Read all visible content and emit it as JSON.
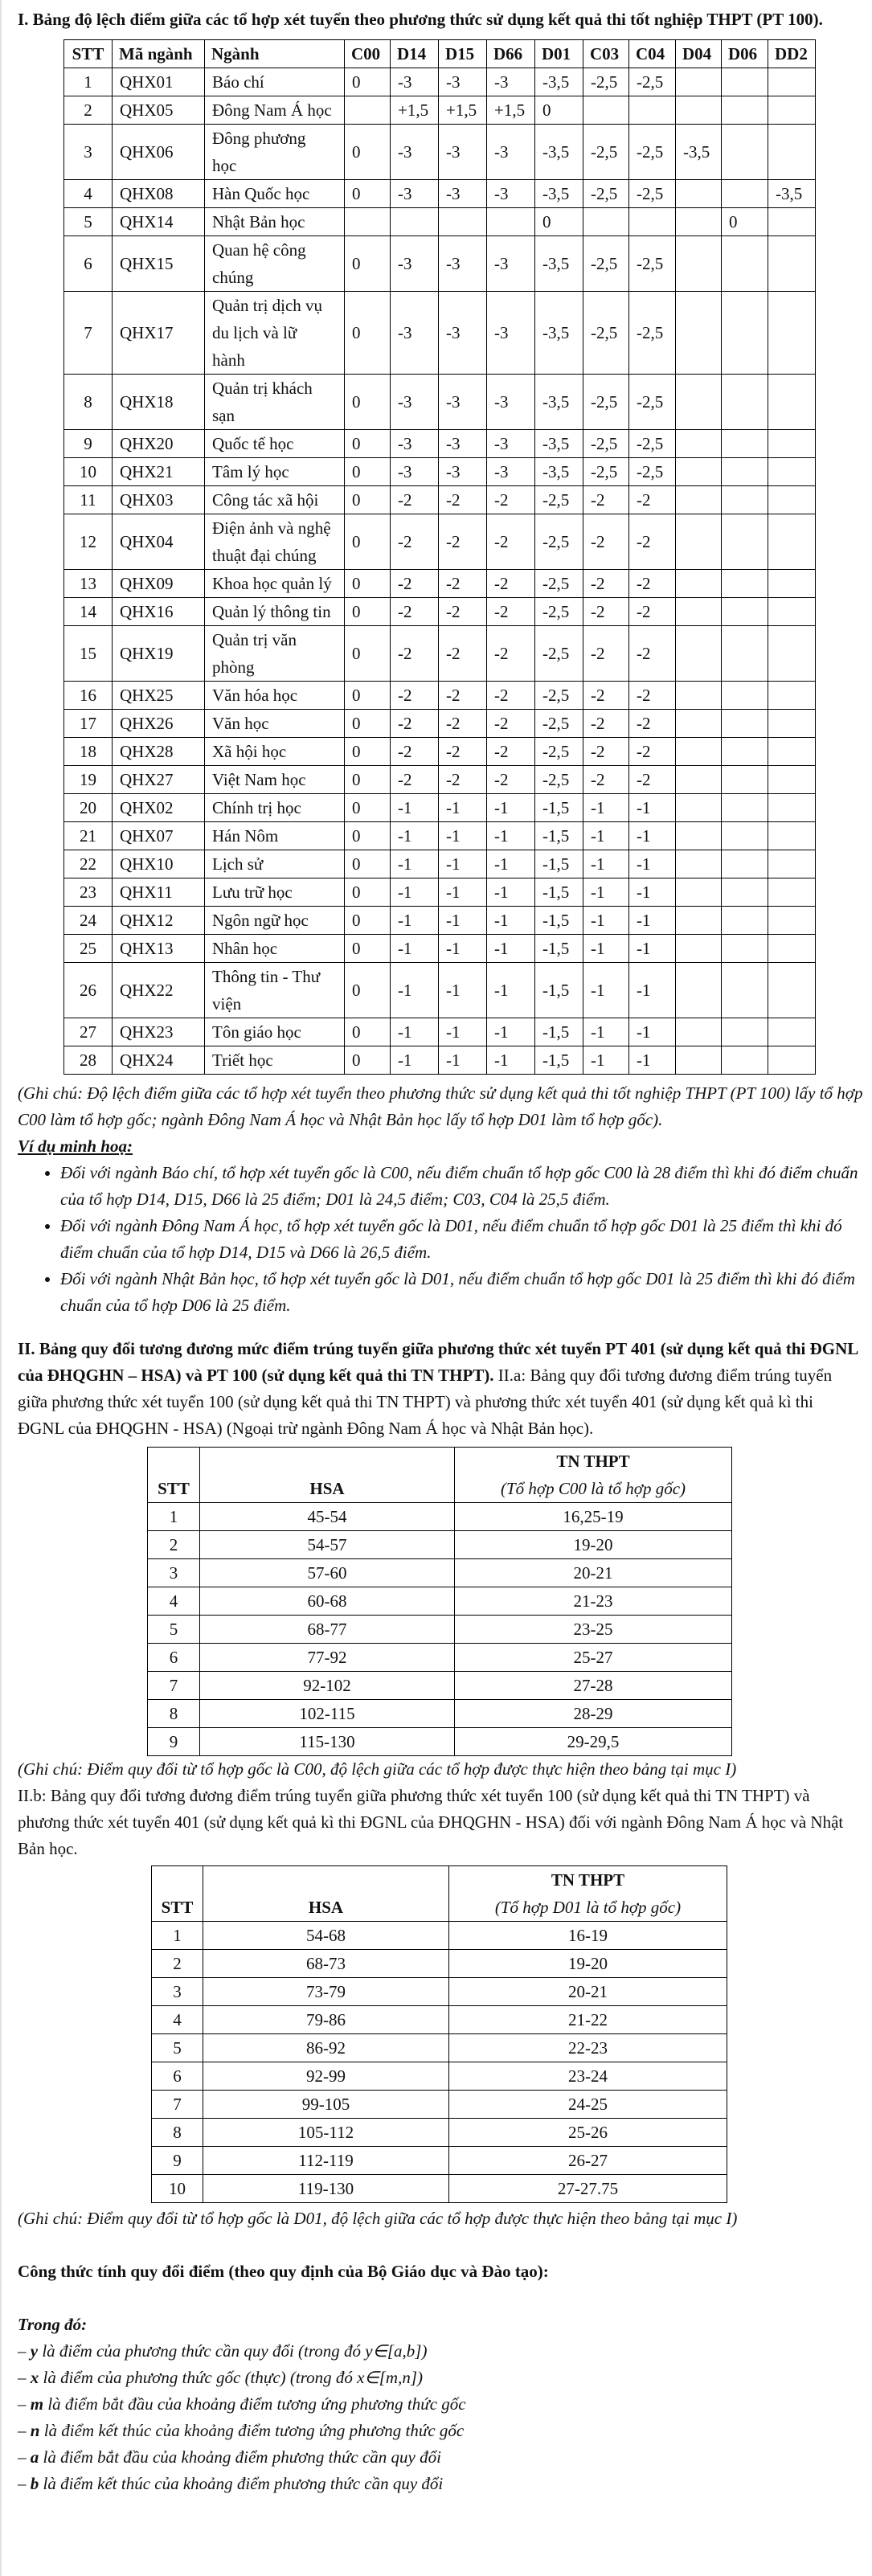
{
  "section1": {
    "title": "I. Bảng độ lệch điểm giữa các tổ hợp xét tuyển theo phương thức sử dụng kết quả thi tốt nghiệp THPT (PT 100).",
    "headers": [
      "STT",
      "Mã ngành",
      "Ngành",
      "C00",
      "D14",
      "D15",
      "D66",
      "D01",
      "C03",
      "C04",
      "D04",
      "D06",
      "DD2"
    ],
    "rows": [
      [
        "1",
        "QHX01",
        "Báo chí",
        "0",
        "-3",
        "-3",
        "-3",
        "-3,5",
        "-2,5",
        "-2,5",
        "",
        "",
        ""
      ],
      [
        "2",
        "QHX05",
        "Đông Nam Á học",
        "",
        "+1,5",
        "+1,5",
        "+1,5",
        "0",
        "",
        "",
        "",
        "",
        ""
      ],
      [
        "3",
        "QHX06",
        "Đông phương\nhọc",
        "0",
        "-3",
        "-3",
        "-3",
        "-3,5",
        "-2,5",
        "-2,5",
        "-3,5",
        "",
        ""
      ],
      [
        "4",
        "QHX08",
        "Hàn Quốc học",
        "0",
        "-3",
        "-3",
        "-3",
        "-3,5",
        "-2,5",
        "-2,5",
        "",
        "",
        "-3,5"
      ],
      [
        "5",
        "QHX14",
        "Nhật Bản học",
        "",
        "",
        "",
        "",
        "0",
        "",
        "",
        "",
        "0",
        ""
      ],
      [
        "6",
        "QHX15",
        "Quan hệ công\nchúng",
        "0",
        "-3",
        "-3",
        "-3",
        "-3,5",
        "-2,5",
        "-2,5",
        "",
        "",
        ""
      ],
      [
        "7",
        "QHX17",
        "Quản trị dịch vụ\ndu lịch và lữ\nhành",
        "0",
        "-3",
        "-3",
        "-3",
        "-3,5",
        "-2,5",
        "-2,5",
        "",
        "",
        ""
      ],
      [
        "8",
        "QHX18",
        "Quản trị khách\nsạn",
        "0",
        "-3",
        "-3",
        "-3",
        "-3,5",
        "-2,5",
        "-2,5",
        "",
        "",
        ""
      ],
      [
        "9",
        "QHX20",
        "Quốc tế học",
        "0",
        "-3",
        "-3",
        "-3",
        "-3,5",
        "-2,5",
        "-2,5",
        "",
        "",
        ""
      ],
      [
        "10",
        "QHX21",
        "Tâm lý học",
        "0",
        "-3",
        "-3",
        "-3",
        "-3,5",
        "-2,5",
        "-2,5",
        "",
        "",
        ""
      ],
      [
        "11",
        "QHX03",
        "Công tác xã hội",
        "0",
        "-2",
        "-2",
        "-2",
        "-2,5",
        "-2",
        "-2",
        "",
        "",
        ""
      ],
      [
        "12",
        "QHX04",
        "Điện ảnh và nghệ\nthuật đại chúng",
        "0",
        "-2",
        "-2",
        "-2",
        "-2,5",
        "-2",
        "-2",
        "",
        "",
        ""
      ],
      [
        "13",
        "QHX09",
        "Khoa học quản lý",
        "0",
        "-2",
        "-2",
        "-2",
        "-2,5",
        "-2",
        "-2",
        "",
        "",
        ""
      ],
      [
        "14",
        "QHX16",
        "Quản lý thông tin",
        "0",
        "-2",
        "-2",
        "-2",
        "-2,5",
        "-2",
        "-2",
        "",
        "",
        ""
      ],
      [
        "15",
        "QHX19",
        "Quản trị văn\nphòng",
        "0",
        "-2",
        "-2",
        "-2",
        "-2,5",
        "-2",
        "-2",
        "",
        "",
        ""
      ],
      [
        "16",
        "QHX25",
        "Văn hóa học",
        "0",
        "-2",
        "-2",
        "-2",
        "-2,5",
        "-2",
        "-2",
        "",
        "",
        ""
      ],
      [
        "17",
        "QHX26",
        "Văn học",
        "0",
        "-2",
        "-2",
        "-2",
        "-2,5",
        "-2",
        "-2",
        "",
        "",
        ""
      ],
      [
        "18",
        "QHX28",
        "Xã hội học",
        "0",
        "-2",
        "-2",
        "-2",
        "-2,5",
        "-2",
        "-2",
        "",
        "",
        ""
      ],
      [
        "19",
        "QHX27",
        "Việt Nam học",
        "0",
        "-2",
        "-2",
        "-2",
        "-2,5",
        "-2",
        "-2",
        "",
        "",
        ""
      ],
      [
        "20",
        "QHX02",
        "Chính trị học",
        "0",
        "-1",
        "-1",
        "-1",
        "-1,5",
        "-1",
        "-1",
        "",
        "",
        ""
      ],
      [
        "21",
        "QHX07",
        "Hán Nôm",
        "0",
        "-1",
        "-1",
        "-1",
        "-1,5",
        "-1",
        "-1",
        "",
        "",
        ""
      ],
      [
        "22",
        "QHX10",
        "Lịch sử",
        "0",
        "-1",
        "-1",
        "-1",
        "-1,5",
        "-1",
        "-1",
        "",
        "",
        ""
      ],
      [
        "23",
        "QHX11",
        "Lưu trữ học",
        "0",
        "-1",
        "-1",
        "-1",
        "-1,5",
        "-1",
        "-1",
        "",
        "",
        ""
      ],
      [
        "24",
        "QHX12",
        "Ngôn ngữ học",
        "0",
        "-1",
        "-1",
        "-1",
        "-1,5",
        "-1",
        "-1",
        "",
        "",
        ""
      ],
      [
        "25",
        "QHX13",
        "Nhân học",
        "0",
        "-1",
        "-1",
        "-1",
        "-1,5",
        "-1",
        "-1",
        "",
        "",
        ""
      ],
      [
        "26",
        "QHX22",
        "Thông tin - Thư\nviện",
        "0",
        "-1",
        "-1",
        "-1",
        "-1,5",
        "-1",
        "-1",
        "",
        "",
        ""
      ],
      [
        "27",
        "QHX23",
        "Tôn giáo học",
        "0",
        "-1",
        "-1",
        "-1",
        "-1,5",
        "-1",
        "-1",
        "",
        "",
        ""
      ],
      [
        "28",
        "QHX24",
        "Triết học",
        "0",
        "-1",
        "-1",
        "-1",
        "-1,5",
        "-1",
        "-1",
        "",
        "",
        ""
      ]
    ],
    "note": "(Ghi chú: Độ lệch điểm giữa các tổ hợp xét tuyển theo phương thức sử dụng kết quả thi tốt nghiệp THPT (PT 100) lấy tổ hợp C00 làm tổ hợp gốc; ngành Đông Nam Á học và Nhật Bản học lấy tổ hợp D01 làm tổ hợp gốc).",
    "example_title": "Ví dụ minh hoạ:",
    "examples": [
      "Đối với ngành Báo chí, tổ hợp xét tuyển gốc là C00, nếu điểm chuẩn tổ hợp gốc C00 là 28 điểm thì khi đó điểm chuẩn của tổ hợp D14, D15, D66 là 25 điểm; D01 là 24,5 điểm; C03, C04 là 25,5 điểm.",
      "Đối với ngành Đông Nam Á học, tổ hợp xét tuyển gốc là D01, nếu điểm chuẩn tổ hợp gốc D01 là 25 điểm thì khi đó điểm chuẩn của tổ hợp D14, D15 và D66 là 26,5 điểm.",
      "Đối với ngành Nhật Bản học, tổ hợp xét tuyển gốc là D01, nếu điểm chuẩn tổ hợp gốc D01 là 25 điểm thì khi đó điểm chuẩn của tổ hợp D06 là 25 điểm."
    ]
  },
  "section2": {
    "title_bold": "II. Bảng quy đổi tương đương mức điểm trúng tuyển giữa phương thức xét tuyển PT 401 (sử dụng kết quả thi ĐGNL của ĐHQGHN – HSA)  và PT 100 (sử dụng kết quả thi TN THPT).",
    "intro_a": " II.a: Bảng quy đổi tương đương điểm trúng tuyển giữa phương thức xét tuyển 100 (sử dụng kết quả thi TN THPT) và phương thức xét tuyển 401 (sử dụng kết quả kì thi ĐGNL của ĐHQGHN - HSA) (Ngoại trừ ngành Đông Nam Á học và Nhật Bản học).",
    "table_a": {
      "headers": {
        "stt": "STT",
        "hsa": "HSA",
        "thpt": "TN THPT",
        "thpt_sub": "(Tổ hợp C00 là tổ hợp gốc)"
      },
      "rows": [
        [
          "1",
          "45-54",
          "16,25-19"
        ],
        [
          "2",
          "54-57",
          "19-20"
        ],
        [
          "3",
          "57-60",
          "20-21"
        ],
        [
          "4",
          "60-68",
          "21-23"
        ],
        [
          "5",
          "68-77",
          "23-25"
        ],
        [
          "6",
          "77-92",
          "25-27"
        ],
        [
          "7",
          "92-102",
          "27-28"
        ],
        [
          "8",
          "102-115",
          "28-29"
        ],
        [
          "9",
          "115-130",
          "29-29,5"
        ]
      ]
    },
    "note_a": "(Ghi chú: Điểm quy đổi từ tổ hợp gốc là C00, độ lệch giữa các tổ hợp được thực hiện theo bảng tại mục I)",
    "intro_b": "II.b: Bảng quy đổi tương đương điểm trúng tuyển giữa phương thức xét tuyển 100 (sử dụng kết quả thi TN THPT) và phương thức xét tuyển 401 (sử dụng kết quả kì thi ĐGNL của ĐHQGHN - HSA) đối với ngành Đông Nam Á học và Nhật Bản học.",
    "table_b": {
      "headers": {
        "stt": "STT",
        "hsa": "HSA",
        "thpt": "TN THPT",
        "thpt_sub": "(Tổ hợp D01 là tổ hợp gốc)"
      },
      "rows": [
        [
          "1",
          "54-68",
          "16-19"
        ],
        [
          "2",
          "68-73",
          "19-20"
        ],
        [
          "3",
          "73-79",
          "20-21"
        ],
        [
          "4",
          "79-86",
          "21-22"
        ],
        [
          "5",
          "86-92",
          "22-23"
        ],
        [
          "6",
          "92-99",
          "23-24"
        ],
        [
          "7",
          "99-105",
          "24-25"
        ],
        [
          "8",
          "105-112",
          "25-26"
        ],
        [
          "9",
          "112-119",
          "26-27"
        ],
        [
          "10",
          "119-130",
          "27-27.75"
        ]
      ]
    },
    "note_b": "(Ghi chú: Điểm quy đổi từ tổ hợp gốc là D01, độ lệch giữa các tổ hợp được thực hiện theo bảng tại mục I)"
  },
  "formula": {
    "title": "Công thức tính quy đổi điểm (theo quy định của Bộ Giáo dục và Đào tạo):",
    "where": "Trong đó:",
    "items": [
      {
        "var": "y",
        "text": " là điểm của phương thức cần quy đổi (trong đó y∈[a,b])"
      },
      {
        "var": "x",
        "text": " là điểm của phương thức gốc (thực) (trong đó x∈[m,n])"
      },
      {
        "var": "m",
        "text": " là điểm bắt đầu của khoảng điểm tương ứng phương thức gốc"
      },
      {
        "var": "n",
        "text": " là điểm kết thúc của khoảng điểm tương ứng phương thức gốc"
      },
      {
        "var": "a",
        "text": " là điểm bắt đầu của khoảng điểm phương thức cần quy đổi"
      },
      {
        "var": "b",
        "text": " là điểm kết thúc của khoảng điểm phương thức cần quy đổi"
      }
    ]
  }
}
